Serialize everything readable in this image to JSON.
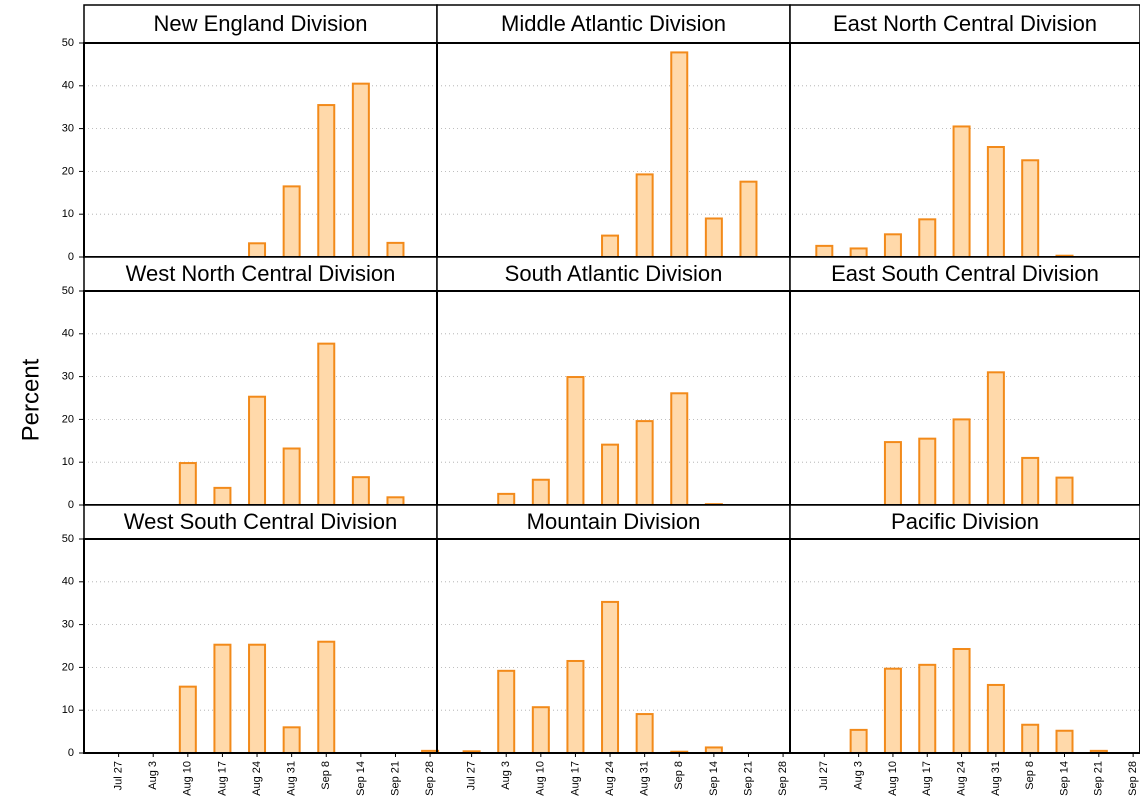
{
  "chart_data": {
    "type": "bar",
    "ylabel": "Percent",
    "categories": [
      "Jul 27",
      "Aug 3",
      "Aug 10",
      "Aug 17",
      "Aug 24",
      "Aug 31",
      "Sep 8",
      "Sep 14",
      "Sep 21",
      "Sep 28"
    ],
    "ylim": [
      0,
      50
    ],
    "yticks": [
      0,
      10,
      20,
      30,
      40,
      50
    ],
    "grid": true,
    "color": "#ffd9aa",
    "edgecolor": "#f28a1a",
    "panels": [
      {
        "title": "New England Division",
        "values": [
          0,
          0,
          0,
          0,
          3.2,
          16.5,
          35.5,
          40.5,
          3.3,
          0
        ]
      },
      {
        "title": "Middle Atlantic Division",
        "values": [
          0,
          0,
          0,
          0,
          5,
          19.3,
          47.8,
          9,
          17.6,
          0
        ]
      },
      {
        "title": "East North Central Division",
        "values": [
          2.6,
          2,
          5.3,
          8.8,
          30.5,
          25.7,
          22.6,
          0.3,
          0,
          0
        ]
      },
      {
        "title": "West North Central Division",
        "values": [
          0,
          0,
          9.8,
          4,
          25.3,
          13.2,
          37.7,
          6.5,
          1.8,
          0
        ]
      },
      {
        "title": "South Atlantic Division",
        "values": [
          0,
          2.6,
          5.9,
          29.9,
          14.1,
          19.6,
          26.1,
          0.2,
          0,
          0
        ]
      },
      {
        "title": "East South Central Division",
        "values": [
          0,
          0,
          14.7,
          15.5,
          20,
          31,
          11,
          6.4,
          0,
          0
        ]
      },
      {
        "title": "West South Central Division",
        "values": [
          0,
          0,
          15.5,
          25.3,
          25.3,
          6,
          26,
          0,
          0,
          0.5
        ]
      },
      {
        "title": "Mountain Division",
        "values": [
          0.4,
          19.2,
          10.7,
          21.5,
          35.3,
          9.1,
          0.3,
          1.3,
          0,
          0
        ]
      },
      {
        "title": "Pacific Division",
        "values": [
          0,
          5.4,
          19.7,
          20.6,
          24.3,
          15.9,
          6.6,
          5.2,
          0.5,
          0
        ]
      }
    ]
  }
}
